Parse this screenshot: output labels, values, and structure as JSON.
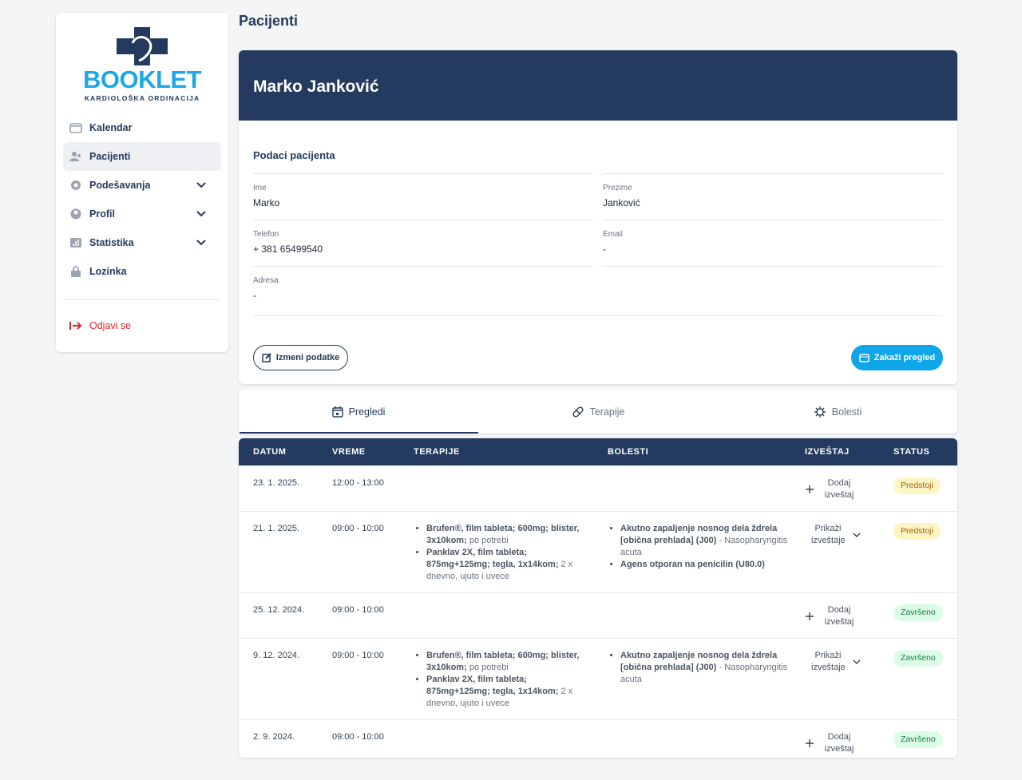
{
  "sidebar": {
    "logo": {
      "title": "BOOKLET",
      "subtitle": "KARDIOLOŠKA ORDINACIJA"
    },
    "nav": [
      {
        "label": "Kalendar"
      },
      {
        "label": "Pacijenti"
      },
      {
        "label": "Podešavanja"
      },
      {
        "label": "Profil"
      },
      {
        "label": "Statistika"
      },
      {
        "label": "Lozinka"
      }
    ],
    "logout": "Odjavi se"
  },
  "page_title": "Pacijenti",
  "patient": {
    "name": "Marko Janković",
    "section_title": "Podaci pacijenta",
    "fields": [
      {
        "label": "Ime",
        "value": "Marko"
      },
      {
        "label": "Prezime",
        "value": "Janković"
      },
      {
        "label": "Telefon",
        "value": "+ 381 65499540"
      },
      {
        "label": "Email",
        "value": "-"
      },
      {
        "label": "Adresa",
        "value": "-"
      }
    ],
    "buttons": {
      "edit": "Izmeni podatke",
      "schedule": "Zakaži pregled"
    }
  },
  "tabs": [
    "Pregledi",
    "Terapije",
    "Bolesti"
  ],
  "table": {
    "columns": [
      "DATUM",
      "VREME",
      "TERAPIJE",
      "BOLESTI",
      "IZVEŠTAJ",
      "STATUS"
    ],
    "rows": [
      {
        "date": "23. 1. 2025.",
        "time": "12:00 - 13:00",
        "therapies": [],
        "diseases": [],
        "report": "Dodaj izveštaj",
        "status": "Predstoji",
        "status_bg": "#fdf5c4",
        "status_fg": "#a16207"
      },
      {
        "date": "21. 1. 2025.",
        "time": "09:00 - 10:00",
        "therapies": [
          {
            "name": "Brufen®, film tableta; 600mg; blister, 3x10kom;",
            "note": "po potrebi"
          },
          {
            "name": "Panklav 2X, film tableta; 875mg+125mg; tegla, 1x14kom;",
            "note": "2 x dnevno, ujuto i uvece"
          }
        ],
        "diseases": [
          {
            "name": "Akutno zapaljenje nosnog dela ždrela [obična prehlada] (J00)",
            "note": "- Nasopharyngitis acuta"
          },
          {
            "name": "Agens otporan na penicilin (U80.0)",
            "note": ""
          }
        ],
        "report": "Prikaži izveštaje",
        "status": "Predstoji",
        "status_bg": "#fdf5c4",
        "status_fg": "#a16207"
      },
      {
        "date": "25. 12. 2024.",
        "time": "09:00 - 10:00",
        "therapies": [],
        "diseases": [],
        "report": "Dodaj izveštaj",
        "status": "Završeno",
        "status_bg": "#dcfce7",
        "status_fg": "#15803d"
      },
      {
        "date": "9. 12. 2024.",
        "time": "09:00 - 10:00",
        "therapies": [
          {
            "name": "Brufen®, film tableta; 600mg; blister, 3x10kom;",
            "note": "po potrebi"
          },
          {
            "name": "Panklav 2X, film tableta; 875mg+125mg; tegla, 1x14kom;",
            "note": "2 x dnevno, ujuto i uvece"
          }
        ],
        "diseases": [
          {
            "name": "Akutno zapaljenje nosnog dela ždrela [obična prehlada] (J00)",
            "note": "- Nasopharyngitis acuta"
          }
        ],
        "report": "Prikaži izveštaje",
        "status": "Završeno",
        "status_bg": "#dcfce7",
        "status_fg": "#15803d"
      },
      {
        "date": "2. 9. 2024.",
        "time": "09:00 - 10:00",
        "therapies": [],
        "diseases": [],
        "report": "Dodaj izveštaj",
        "status": "Završeno",
        "status_bg": "#dcfce7",
        "status_fg": "#15803d"
      }
    ]
  }
}
